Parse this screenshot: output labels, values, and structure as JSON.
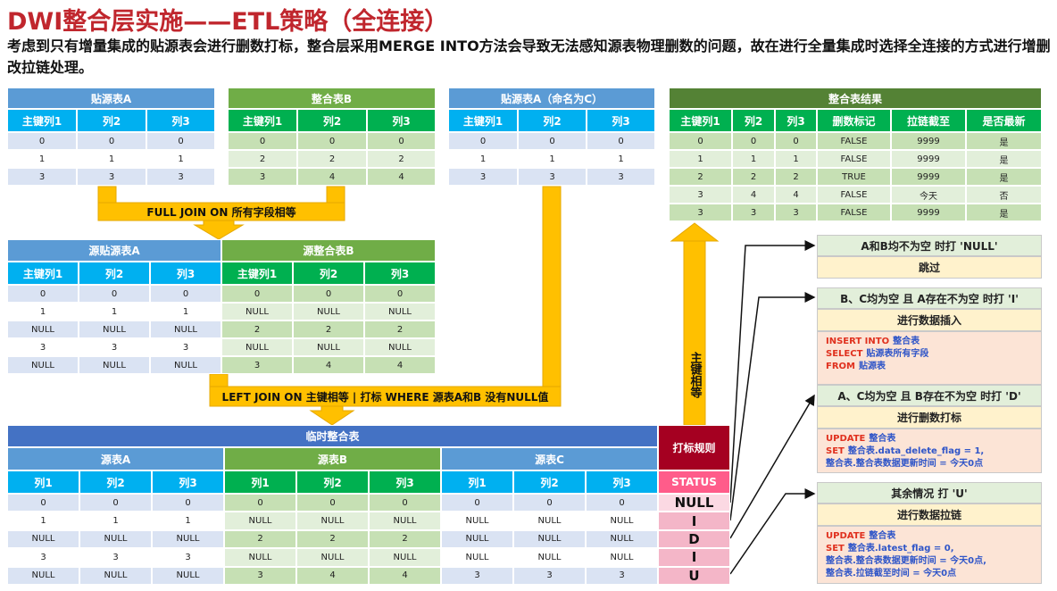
{
  "header": {
    "title": "DWI整合层实施——ETL策略（全连接）",
    "subtitle": "考虑到只有增量集成的贴源表会进行删数打标，整合层采用MERGE INTO方法会导致无法感知源表物理删数的问题，故在进行全量集成时选择全连接的方式进行增删改拉链处理。"
  },
  "source_a": {
    "title": "贴源表A",
    "columns": [
      "主键列1",
      "列2",
      "列3"
    ],
    "rows": [
      [
        0,
        0,
        0
      ],
      [
        1,
        1,
        1
      ],
      [
        3,
        3,
        3
      ]
    ]
  },
  "target_b": {
    "title": "整合表B",
    "columns": [
      "主键列1",
      "列2",
      "列3"
    ],
    "rows": [
      [
        0,
        0,
        0
      ],
      [
        2,
        2,
        2
      ],
      [
        3,
        4,
        4
      ]
    ]
  },
  "source_c": {
    "title": "贴源表A（命名为C）",
    "columns": [
      "主键列1",
      "列2",
      "列3"
    ],
    "rows": [
      [
        0,
        0,
        0
      ],
      [
        1,
        1,
        1
      ],
      [
        3,
        3,
        3
      ]
    ]
  },
  "result": {
    "title": "整合表结果",
    "columns": [
      "主键列1",
      "列2",
      "列3",
      "删数标记",
      "拉链截至",
      "是否最新"
    ],
    "rows": [
      [
        0,
        0,
        0,
        "FALSE",
        9999,
        "是"
      ],
      [
        1,
        1,
        1,
        "FALSE",
        9999,
        "是"
      ],
      [
        2,
        2,
        2,
        "TRUE",
        9999,
        "是"
      ],
      [
        3,
        4,
        4,
        "FALSE",
        "今天",
        "否"
      ],
      [
        3,
        3,
        3,
        "FALSE",
        9999,
        "是"
      ]
    ]
  },
  "join_1": {
    "label": "FULL JOIN ON 所有字段相等"
  },
  "merged": {
    "groups": [
      "源贴源表A",
      "源整合表B"
    ],
    "columns": [
      "主键列1",
      "列2",
      "列3",
      "主键列1",
      "列2",
      "列3"
    ],
    "rows": [
      [
        0,
        0,
        0,
        0,
        0,
        0
      ],
      [
        1,
        1,
        1,
        "NULL",
        "NULL",
        "NULL"
      ],
      [
        "NULL",
        "NULL",
        "NULL",
        2,
        2,
        2
      ],
      [
        3,
        3,
        3,
        "NULL",
        "NULL",
        "NULL"
      ],
      [
        "NULL",
        "NULL",
        "NULL",
        3,
        4,
        4
      ]
    ]
  },
  "join_2": {
    "label": "LEFT JOIN ON 主键相等 | 打标 WHERE 源表A和B 没有NULL值"
  },
  "join_3": {
    "label": "主键相等"
  },
  "temp": {
    "title": "临时整合表",
    "groups": [
      "源表A",
      "源表B",
      "源表C"
    ],
    "columns": [
      "列1",
      "列2",
      "列3",
      "列1",
      "列2",
      "列3",
      "列1",
      "列2",
      "列3"
    ],
    "rows": [
      [
        0,
        0,
        0,
        0,
        0,
        0,
        0,
        0,
        0
      ],
      [
        1,
        1,
        1,
        "NULL",
        "NULL",
        "NULL",
        "NULL",
        "NULL",
        "NULL"
      ],
      [
        "NULL",
        "NULL",
        "NULL",
        2,
        2,
        2,
        "NULL",
        "NULL",
        "NULL"
      ],
      [
        3,
        3,
        3,
        "NULL",
        "NULL",
        "NULL",
        "NULL",
        "NULL",
        "NULL"
      ],
      [
        "NULL",
        "NULL",
        "NULL",
        3,
        4,
        4,
        3,
        3,
        3
      ]
    ],
    "rule_title": "打标规则",
    "status_header": "STATUS",
    "status": [
      "NULL",
      "I",
      "D",
      "I",
      "U"
    ]
  },
  "rules": [
    {
      "condition": "A和B均不为空 时打 'NULL'",
      "action": "跳过"
    },
    {
      "condition": "B、C均为空 且 A存在不为空 时打 'I'",
      "action": "进行数据插入",
      "code": [
        {
          "keyword": "INSERT INTO",
          "text": "整合表"
        },
        {
          "keyword": "SELECT",
          "text": "贴源表所有字段"
        },
        {
          "keyword": "FROM",
          "text": "贴源表"
        }
      ]
    },
    {
      "condition": "A、C均为空 且 B存在不为空 时打 'D'",
      "action": "进行删数打标",
      "code": [
        {
          "keyword": "UPDATE",
          "text": "整合表"
        },
        {
          "keyword": "SET",
          "text": "整合表.data_delete_flag = 1,"
        },
        {
          "text": "整合表.整合表数据更新时间 = 今天0点"
        }
      ]
    },
    {
      "condition": "其余情况 打 'U'",
      "action": "进行数据拉链",
      "code": [
        {
          "keyword": "UPDATE",
          "text": "整合表"
        },
        {
          "keyword": "SET",
          "text": "整合表.latest_flag = 0,"
        },
        {
          "text": "整合表.整合表数据更新时间 = 今天0点,"
        },
        {
          "text": "整合表.拉链截至时间 = 今天0点"
        }
      ]
    }
  ]
}
